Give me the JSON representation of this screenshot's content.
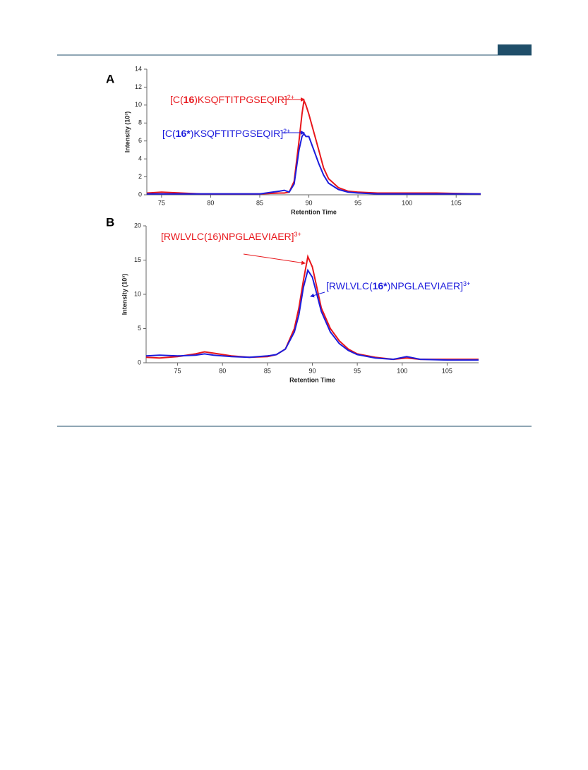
{
  "chart_data": [
    {
      "type": "line",
      "panel": "A",
      "xlabel": "Retention Time",
      "ylabel": "Intensity (10³)",
      "xlim": [
        73.5,
        107.5
      ],
      "ylim": [
        0,
        14
      ],
      "xticks": [
        75,
        80,
        85,
        90,
        95,
        100,
        105
      ],
      "yticks": [
        0,
        2,
        4,
        6,
        8,
        10,
        12,
        14
      ],
      "x": [
        73.5,
        75,
        77,
        79,
        81,
        83,
        85,
        87,
        87.5,
        88,
        88.5,
        89,
        89.3,
        89.5,
        89.7,
        90,
        90.5,
        91,
        91.5,
        92,
        93,
        94,
        95,
        97,
        100,
        103,
        107.5
      ],
      "series": [
        {
          "color": "#e8161b",
          "values": [
            0.2,
            0.3,
            0.2,
            0.1,
            0.1,
            0.1,
            0.1,
            0.2,
            0.2,
            0.3,
            1.5,
            6,
            9,
            10.5,
            10,
            9,
            7,
            5,
            3,
            1.8,
            0.8,
            0.4,
            0.3,
            0.2,
            0.2,
            0.2,
            0.1
          ]
        },
        {
          "color": "#1c1cdc",
          "values": [
            0.1,
            0.1,
            0.1,
            0.1,
            0.1,
            0.1,
            0.1,
            0.4,
            0.5,
            0.3,
            1.2,
            5,
            6.5,
            6.8,
            6.5,
            6.5,
            5,
            3.5,
            2.2,
            1.3,
            0.6,
            0.3,
            0.2,
            0.1,
            0.1,
            0.1,
            0.1
          ]
        }
      ],
      "annotations": [
        {
          "color": "#e8161b",
          "parts": [
            {
              "text": "[C("
            },
            {
              "text": "16",
              "bold": true
            },
            {
              "text": ")KSQFTITPGSEQIR]"
            },
            {
              "text": "2+",
              "sup": true
            }
          ]
        },
        {
          "color": "#1c1cdc",
          "parts": [
            {
              "text": "[C("
            },
            {
              "text": "16*",
              "bold": true
            },
            {
              "text": ")KSQFTITPGSEQIR]"
            },
            {
              "text": "2+",
              "sup": true
            }
          ]
        }
      ]
    },
    {
      "type": "line",
      "panel": "B",
      "xlabel": "Retention Time",
      "ylabel": "Intensity (10³)",
      "xlim": [
        71.5,
        108.5
      ],
      "ylim": [
        0,
        20
      ],
      "xticks": [
        75,
        80,
        85,
        90,
        95,
        100,
        105
      ],
      "yticks": [
        0,
        5,
        10,
        15,
        20
      ],
      "x": [
        71.5,
        73,
        75,
        77,
        78,
        79,
        81,
        83,
        85,
        86,
        87,
        88,
        88.5,
        89,
        89.5,
        90,
        90.5,
        91,
        92,
        93,
        94,
        95,
        97,
        99,
        100.5,
        102,
        105,
        108.5
      ],
      "series": [
        {
          "color": "#e8161b",
          "values": [
            0.8,
            0.7,
            0.9,
            1.3,
            1.6,
            1.4,
            1.0,
            0.8,
            0.9,
            1.2,
            2,
            5,
            8,
            12,
            15.5,
            14,
            11,
            8,
            5,
            3.2,
            2,
            1.3,
            0.8,
            0.5,
            0.7,
            0.5,
            0.5,
            0.5
          ]
        },
        {
          "color": "#1c1cdc",
          "values": [
            1.0,
            1.1,
            1.0,
            1.1,
            1.3,
            1.1,
            0.9,
            0.8,
            1.0,
            1.2,
            2,
            4.5,
            7,
            11,
            13.5,
            12.5,
            10,
            7.5,
            4.5,
            2.8,
            1.8,
            1.2,
            0.7,
            0.5,
            0.9,
            0.5,
            0.4,
            0.4
          ]
        }
      ],
      "annotations": [
        {
          "color": "#e8161b",
          "parts": [
            {
              "text": "[RWLVLC(16)NPGLAEVIAER]"
            },
            {
              "text": "3+",
              "sup": true
            }
          ]
        },
        {
          "color": "#1c1cdc",
          "parts": [
            {
              "text": "[RWLVLC("
            },
            {
              "text": "16*",
              "bold": true
            },
            {
              "text": ")NPGLAEVIAER]"
            },
            {
              "text": "3+",
              "sup": true
            }
          ]
        }
      ]
    }
  ]
}
